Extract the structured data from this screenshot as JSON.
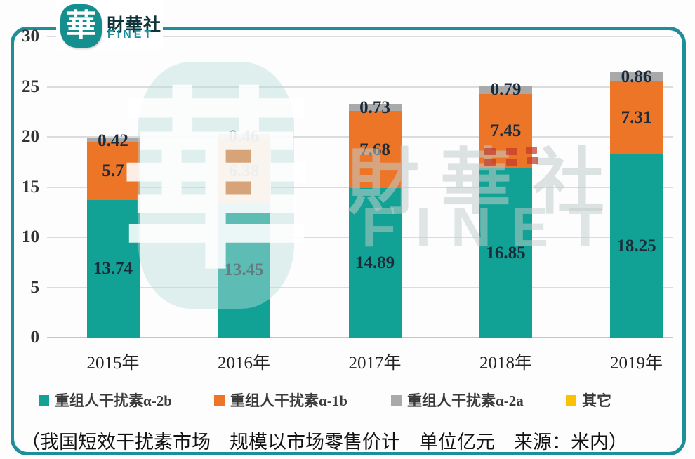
{
  "header": {
    "logo_glyph": "華",
    "brand_name": "財華社",
    "brand_sub": "FINET"
  },
  "chart_data": {
    "type": "bar",
    "stacked": true,
    "categories": [
      "2015年",
      "2016年",
      "2017年",
      "2018年",
      "2019年"
    ],
    "series": [
      {
        "name": "重组人干扰素α-2b",
        "color": "#12a295",
        "values": [
          13.74,
          13.45,
          14.89,
          16.85,
          18.25
        ]
      },
      {
        "name": "重组人干扰素α-1b",
        "color": "#ed7528",
        "values": [
          5.7,
          6.38,
          7.68,
          7.45,
          7.31
        ]
      },
      {
        "name": "重组人干扰素α-2a",
        "color": "#a9a9a9",
        "values": [
          0.42,
          0.46,
          0.73,
          0.79,
          0.86
        ]
      },
      {
        "name": "其它",
        "color": "#fcc105",
        "values": [
          null,
          null,
          null,
          null,
          null
        ]
      }
    ],
    "ylim": [
      0,
      30
    ],
    "yticks": [
      0,
      5,
      10,
      15,
      20,
      25,
      30
    ],
    "grid": true,
    "legend_position": "bottom",
    "value_labels_color": "#1c2b3a"
  },
  "caption": {
    "text": "（我国短效干扰素市场　规模以市场零售价计　单位亿元　来源：米内）"
  },
  "watermark": {
    "glyph": "華",
    "brand": "財華社",
    "brand_sub": "FINET",
    "seal_color": "rgba(194,58,43,0.72)"
  },
  "colors": {
    "frame": "#1d8f9b",
    "logo_teal": "#158f8d",
    "grid": "#dcdcdc",
    "background": "#fdfdfd"
  }
}
